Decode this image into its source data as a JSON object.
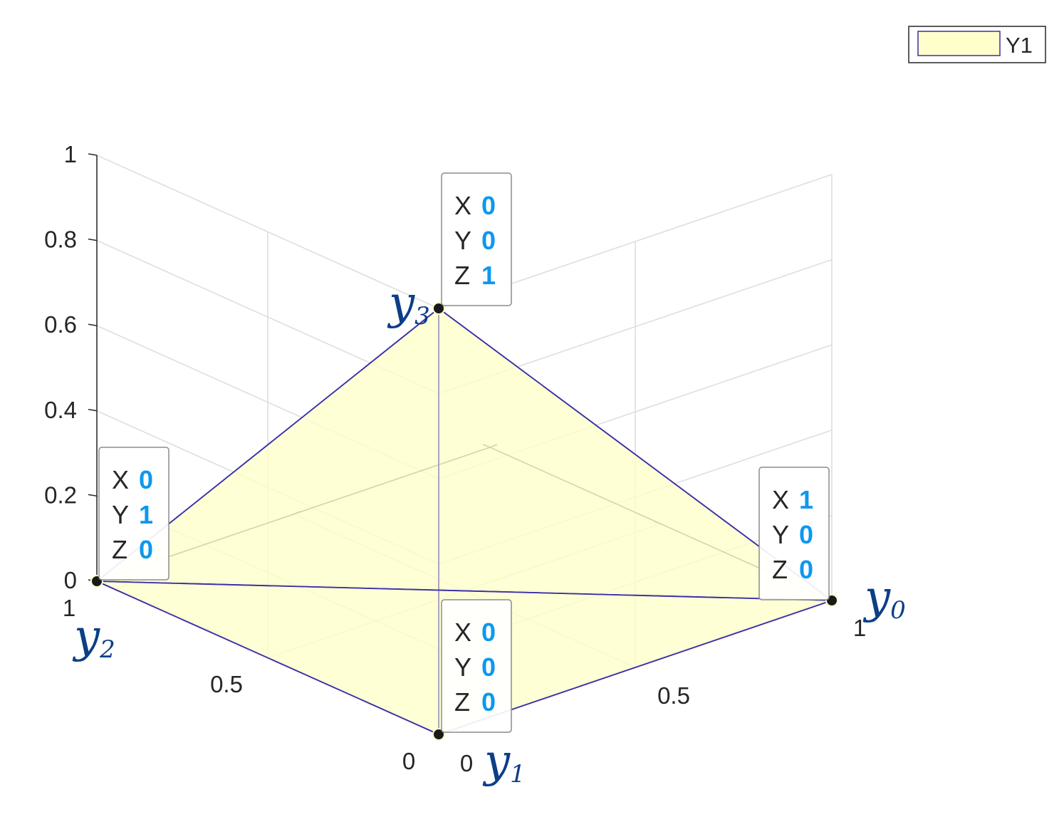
{
  "chart_data": {
    "type": "3d-surface",
    "series": [
      {
        "name": "Y1",
        "vertices": [
          {
            "x": 1,
            "y": 0,
            "z": 0
          },
          {
            "x": 0,
            "y": 0,
            "z": 0
          },
          {
            "x": 0,
            "y": 1,
            "z": 0
          },
          {
            "x": 0,
            "y": 0,
            "z": 1
          }
        ],
        "faces": [
          [
            0,
            1,
            3
          ],
          [
            1,
            2,
            3
          ],
          [
            0,
            2,
            3
          ],
          [
            0,
            1,
            2
          ]
        ]
      }
    ],
    "xlim": [
      0,
      1
    ],
    "ylim": [
      0,
      1
    ],
    "zlim": [
      0,
      1
    ],
    "x_ticks": [
      "0",
      "0.5",
      "1"
    ],
    "y_ticks": [
      "0",
      "0.5",
      "1"
    ],
    "z_ticks": [
      "0",
      "0.2",
      "0.4",
      "0.6",
      "0.8",
      "1"
    ],
    "grid": true,
    "legend": {
      "position": "top-right",
      "entries": [
        "Y1"
      ]
    },
    "datatips": [
      {
        "X": "0",
        "Y": "0",
        "Z": "1"
      },
      {
        "X": "0",
        "Y": "1",
        "Z": "0"
      },
      {
        "X": "1",
        "Y": "0",
        "Z": "0"
      },
      {
        "X": "0",
        "Y": "0",
        "Z": "0"
      }
    ],
    "annotations": [
      {
        "base": "y",
        "sub": "3"
      },
      {
        "base": "y",
        "sub": "2"
      },
      {
        "base": "y",
        "sub": "0"
      },
      {
        "base": "y",
        "sub": "1"
      }
    ]
  },
  "colors": {
    "face": "#ffffcc",
    "edge": "#3b2fa6",
    "grid": "#dcdcdc",
    "axis": "#262626",
    "tip_value": "#0c98f0",
    "annotation": "#0b3f86"
  }
}
